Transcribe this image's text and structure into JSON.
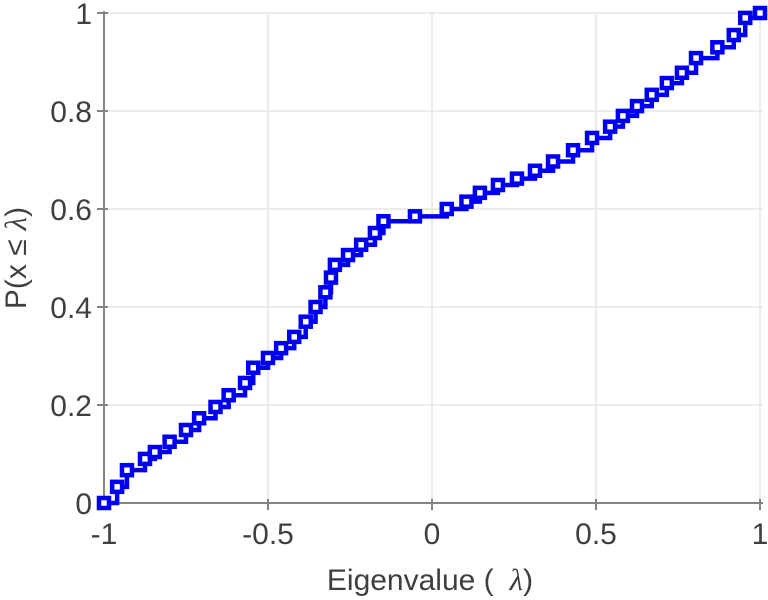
{
  "figure": {
    "background": "#ffffff",
    "axis_color": "#848484",
    "grid_color": "#e6e6e6",
    "tick_label_color": "#3f3f3f",
    "series_color": "#0000f0"
  },
  "chart_data": {
    "type": "line",
    "subtype": "stairs-empirical-cdf",
    "title": "",
    "xlabel": "Eigenvalue ( λ)",
    "xlabel_parts": {
      "prefix": "Eigenvalue (",
      "symbol": "λ",
      "suffix": ")"
    },
    "ylabel": "P(x ≤ λ)",
    "ylabel_parts": {
      "prefix": "P(x ≤",
      "symbol": "λ",
      "suffix": ")"
    },
    "xlim": [
      -1,
      1
    ],
    "ylim": [
      0,
      1
    ],
    "xticks": [
      -1,
      -0.5,
      0,
      0.5,
      1
    ],
    "xtick_labels": [
      "-1",
      "-0.5",
      "0",
      "0.5",
      "1"
    ],
    "yticks": [
      0,
      0.2,
      0.4,
      0.6,
      0.8,
      1
    ],
    "ytick_labels": [
      "0",
      "0.2",
      "0.4",
      "0.6",
      "0.8",
      "1"
    ],
    "grid": true,
    "legend_position": "none",
    "series": [
      {
        "name": "empirical CDF of eigenvalues",
        "color": "#0000f0",
        "line_width": 4.5,
        "marker": "hollow-square",
        "marker_size": 10,
        "points": [
          [
            -1.0,
            0.0
          ],
          [
            -0.96,
            0.033
          ],
          [
            -0.93,
            0.067
          ],
          [
            -0.875,
            0.09
          ],
          [
            -0.845,
            0.104
          ],
          [
            -0.8,
            0.125
          ],
          [
            -0.75,
            0.149
          ],
          [
            -0.71,
            0.173
          ],
          [
            -0.66,
            0.196
          ],
          [
            -0.62,
            0.22
          ],
          [
            -0.57,
            0.245
          ],
          [
            -0.545,
            0.276
          ],
          [
            -0.5,
            0.296
          ],
          [
            -0.46,
            0.316
          ],
          [
            -0.42,
            0.339
          ],
          [
            -0.385,
            0.37
          ],
          [
            -0.355,
            0.4
          ],
          [
            -0.325,
            0.43
          ],
          [
            -0.308,
            0.46
          ],
          [
            -0.296,
            0.486
          ],
          [
            -0.256,
            0.506
          ],
          [
            -0.216,
            0.527
          ],
          [
            -0.174,
            0.551
          ],
          [
            -0.148,
            0.575
          ],
          [
            -0.052,
            0.585
          ],
          [
            0.045,
            0.6
          ],
          [
            0.105,
            0.615
          ],
          [
            0.146,
            0.633
          ],
          [
            0.201,
            0.649
          ],
          [
            0.259,
            0.662
          ],
          [
            0.314,
            0.678
          ],
          [
            0.369,
            0.697
          ],
          [
            0.43,
            0.72
          ],
          [
            0.488,
            0.745
          ],
          [
            0.543,
            0.768
          ],
          [
            0.582,
            0.79
          ],
          [
            0.625,
            0.81
          ],
          [
            0.67,
            0.833
          ],
          [
            0.716,
            0.857
          ],
          [
            0.762,
            0.878
          ],
          [
            0.805,
            0.908
          ],
          [
            0.87,
            0.93
          ],
          [
            0.92,
            0.955
          ],
          [
            0.955,
            0.99
          ],
          [
            1.0,
            1.0
          ]
        ]
      }
    ]
  }
}
